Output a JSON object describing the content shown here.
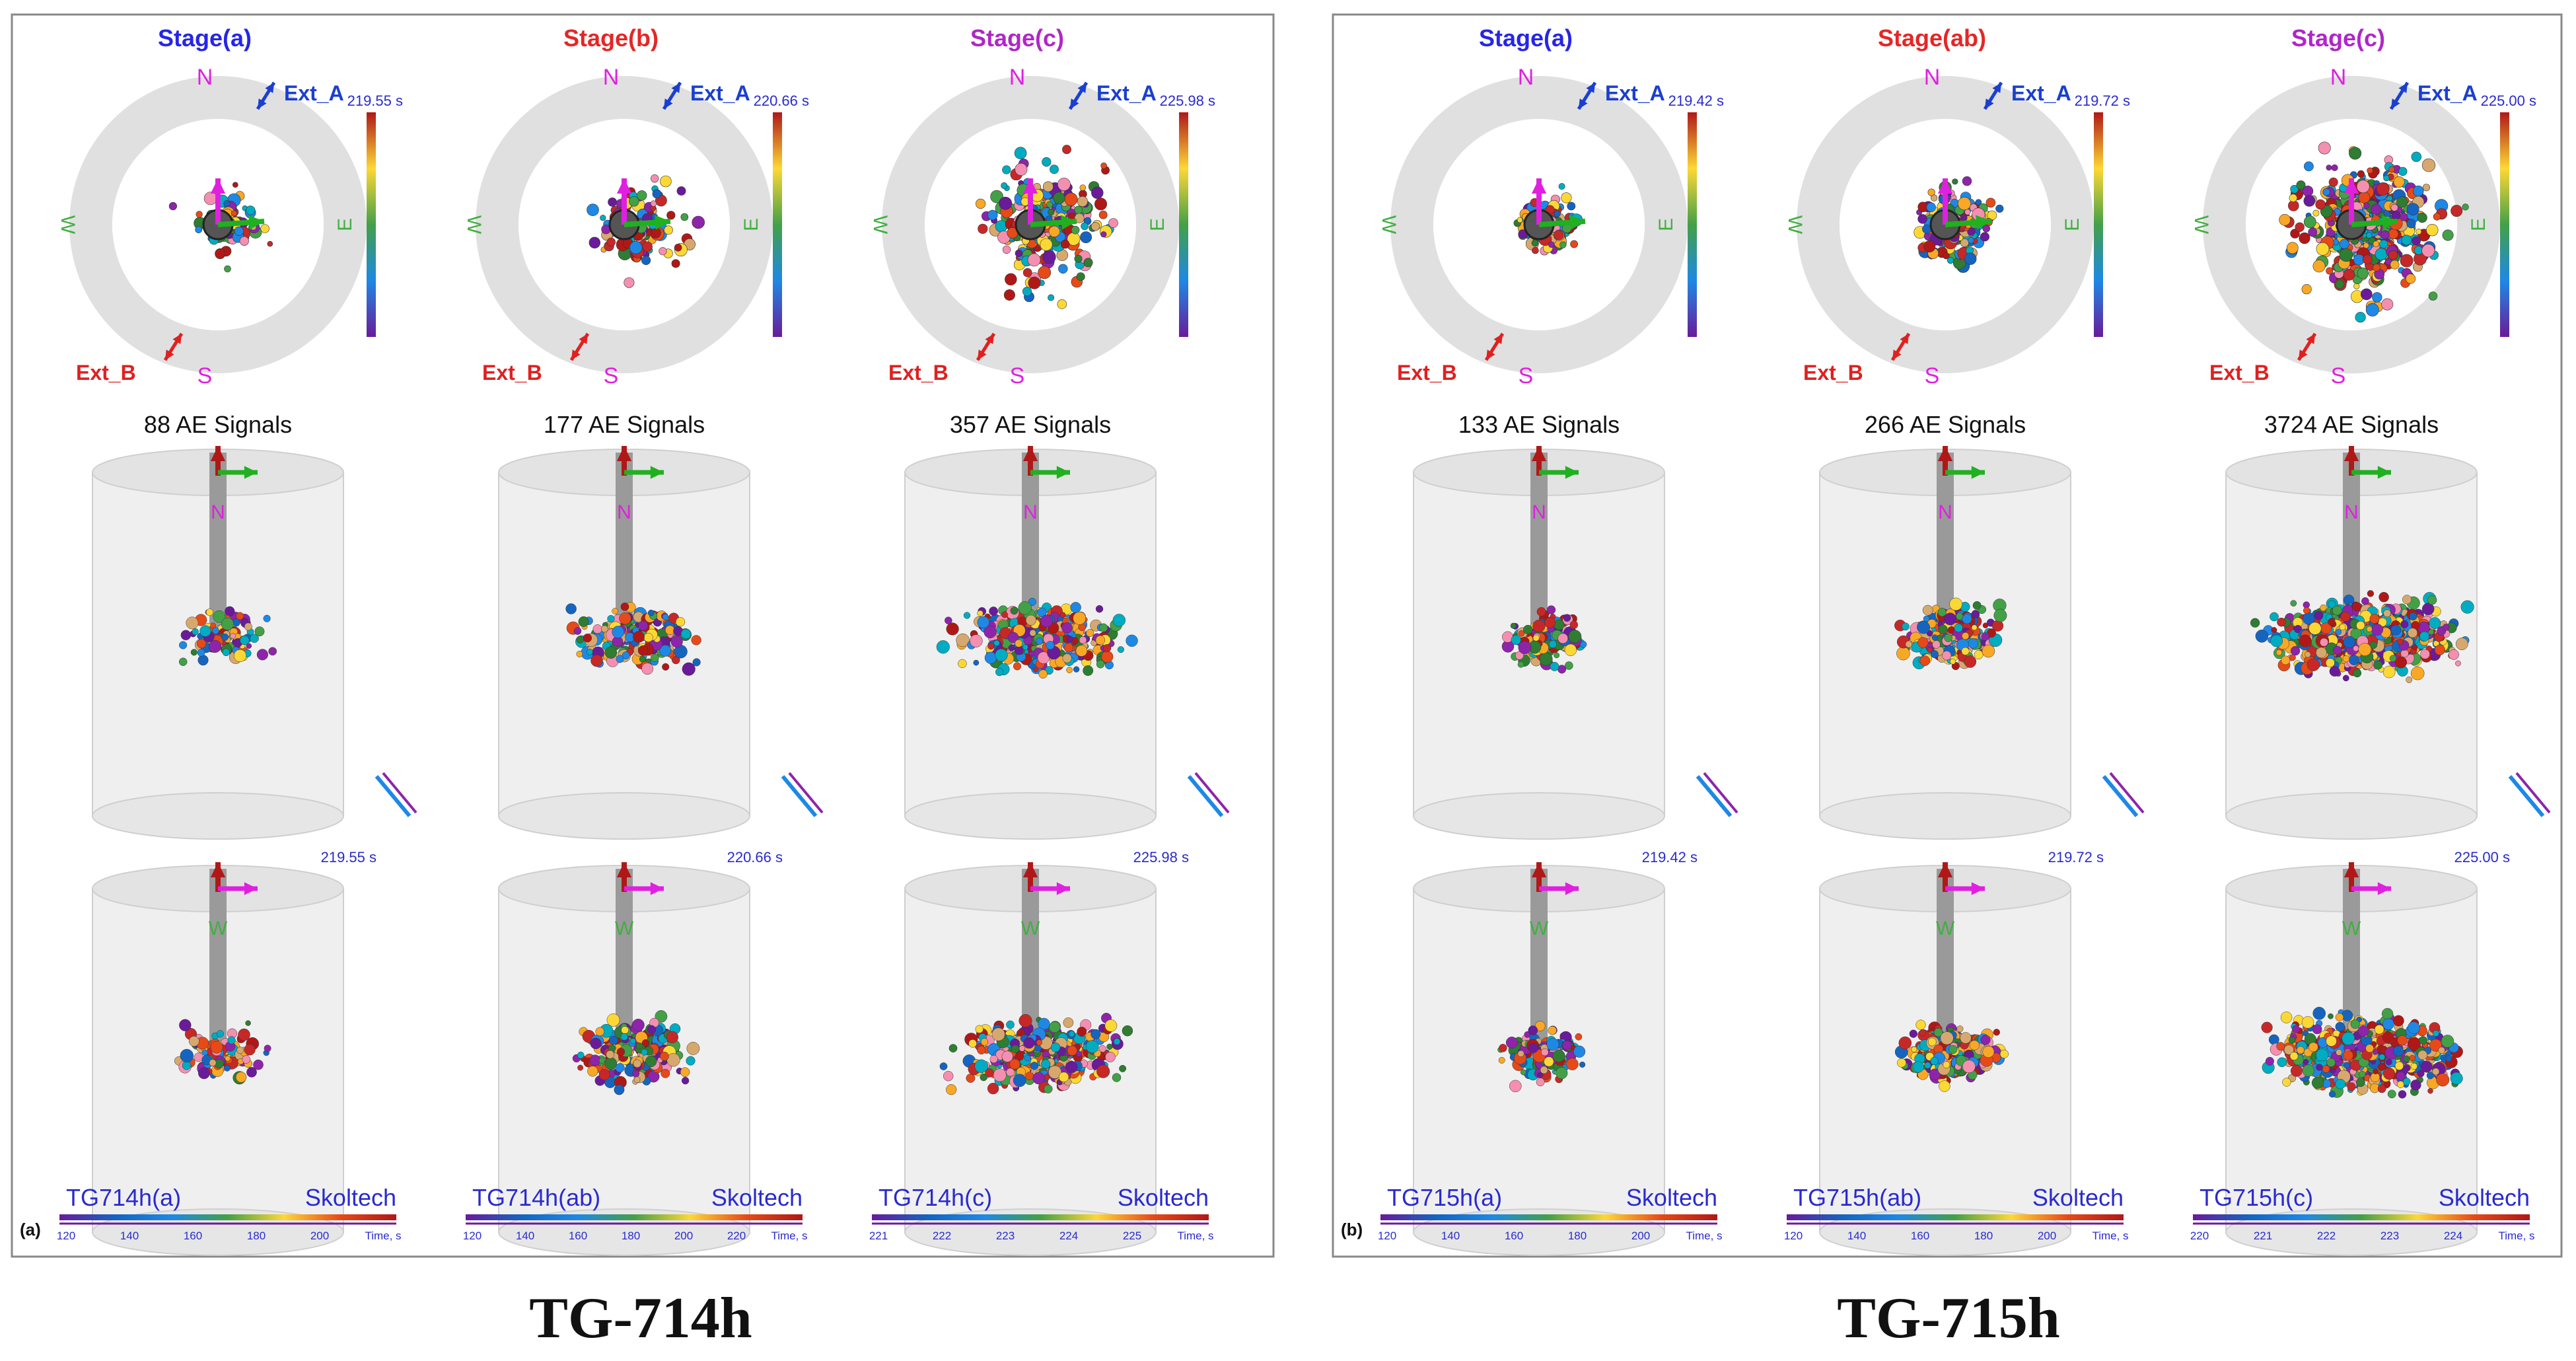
{
  "figure": {
    "panels": [
      {
        "letter": "(a)",
        "specimen": "TG-714h",
        "stages": [
          {
            "title": "Stage(a)",
            "title_color": "#2626e6",
            "time": "219.55 s",
            "signals": "88 AE Signals",
            "tag": "TG714h(a)",
            "brand": "Skoltech",
            "ticks": [
              "120",
              "140",
              "160",
              "180",
              "200",
              "Time, s"
            ],
            "density": 88,
            "spread": 0.55
          },
          {
            "title": "Stage(b)",
            "title_color": "#e62626",
            "time": "220.66 s",
            "signals": "177 AE Signals",
            "tag": "TG714h(ab)",
            "brand": "Skoltech",
            "ticks": [
              "120",
              "140",
              "160",
              "180",
              "200",
              "220",
              "Time, s"
            ],
            "density": 177,
            "spread": 0.7
          },
          {
            "title": "Stage(c)",
            "title_color": "#b026c8",
            "time": "225.98 s",
            "signals": "357 AE Signals",
            "tag": "TG714h(c)",
            "brand": "Skoltech",
            "ticks": [
              "221",
              "222",
              "223",
              "224",
              "225",
              "Time, s"
            ],
            "density": 357,
            "spread": 0.95
          }
        ]
      },
      {
        "letter": "(b)",
        "specimen": "TG-715h",
        "stages": [
          {
            "title": "Stage(a)",
            "title_color": "#2626e6",
            "time": "219.42 s",
            "signals": "133 AE Signals",
            "tag": "TG715h(a)",
            "brand": "Skoltech",
            "ticks": [
              "120",
              "140",
              "160",
              "180",
              "200",
              "Time, s"
            ],
            "density": 133,
            "spread": 0.45
          },
          {
            "title": "Stage(ab)",
            "title_color": "#e62626",
            "time": "219.72 s",
            "signals": "266 AE Signals",
            "tag": "TG715h(ab)",
            "brand": "Skoltech",
            "ticks": [
              "120",
              "140",
              "160",
              "180",
              "200",
              "Time, s"
            ],
            "density": 266,
            "spread": 0.55
          },
          {
            "title": "Stage(c)",
            "title_color": "#b026c8",
            "time": "225.00 s",
            "signals": "3724 AE Signals",
            "tag": "TG715h(c)",
            "brand": "Skoltech",
            "ticks": [
              "220",
              "221",
              "222",
              "223",
              "224",
              "Time, s"
            ],
            "density": 700,
            "spread": 1.05
          }
        ]
      }
    ],
    "compass": {
      "north": "N",
      "south": "S",
      "west": "W",
      "east": "E",
      "ext_a": "Ext_A",
      "ext_b": "Ext_B"
    },
    "colors": {
      "frame": "#888888",
      "ring": "#e0e0e0",
      "cyl": "#efefef",
      "rod": "#9a9a9a",
      "north": "#e020e0",
      "ext_a": "#1a3fd0",
      "ext_b": "#e02020",
      "west": "#40b040",
      "time": "#2a2ad0"
    }
  }
}
